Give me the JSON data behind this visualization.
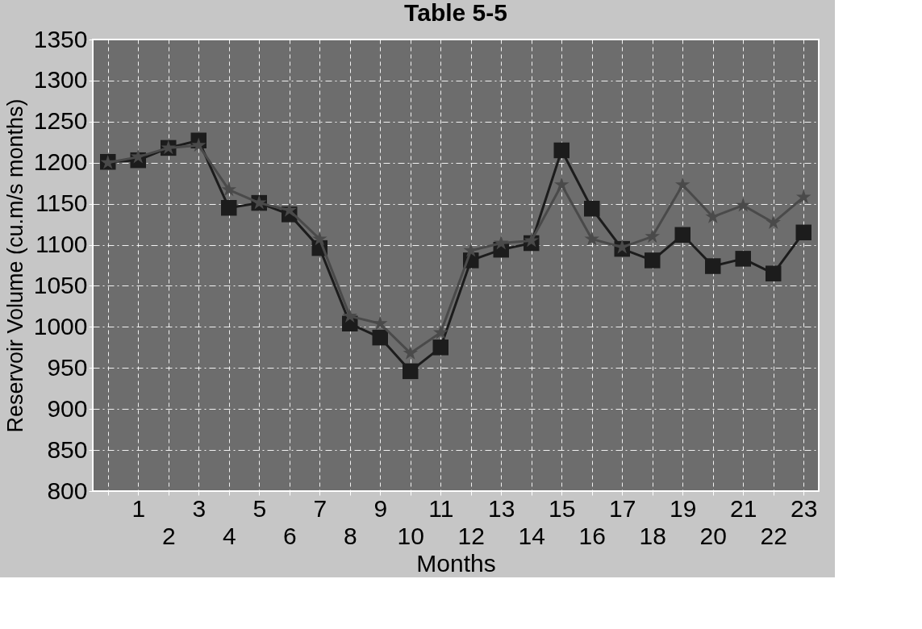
{
  "chart_data": {
    "type": "line",
    "title": "Table 5-5",
    "xlabel": "Months",
    "ylabel": "Reservoir Volume (cu.m/s  months)",
    "categories": [
      null,
      "1",
      "2",
      "3",
      "4",
      "5",
      "6",
      "7",
      "8",
      "9",
      "10",
      "11",
      "12",
      "13",
      "14",
      "15",
      "16",
      "17",
      "18",
      "19",
      "20",
      "21",
      "22",
      "23"
    ],
    "series": [
      {
        "color": "#4a4a4a",
        "marker": "star",
        "values": [
          1200,
          1207,
          1218,
          1221,
          1167,
          1151,
          1142,
          1107,
          1013,
          1004,
          968,
          993,
          1093,
          1102,
          1105,
          1173,
          1107,
          1097,
          1110,
          1173,
          1134,
          1148,
          1127,
          1158
        ]
      },
      {
        "color": "#1c1c1c",
        "marker": "square",
        "values": [
          1201,
          1203,
          1218,
          1227,
          1145,
          1151,
          1137,
          1096,
          1004,
          987,
          946,
          975,
          1081,
          1094,
          1102,
          1215,
          1144,
          1095,
          1081,
          1112,
          1074,
          1083,
          1065,
          1115
        ]
      }
    ],
    "ylim": [
      800,
      1350
    ],
    "yticks": [
      800,
      850,
      900,
      950,
      1000,
      1050,
      1100,
      1150,
      1200,
      1250,
      1300,
      1350
    ],
    "grid": true,
    "legend": false,
    "line_style": "solid"
  }
}
